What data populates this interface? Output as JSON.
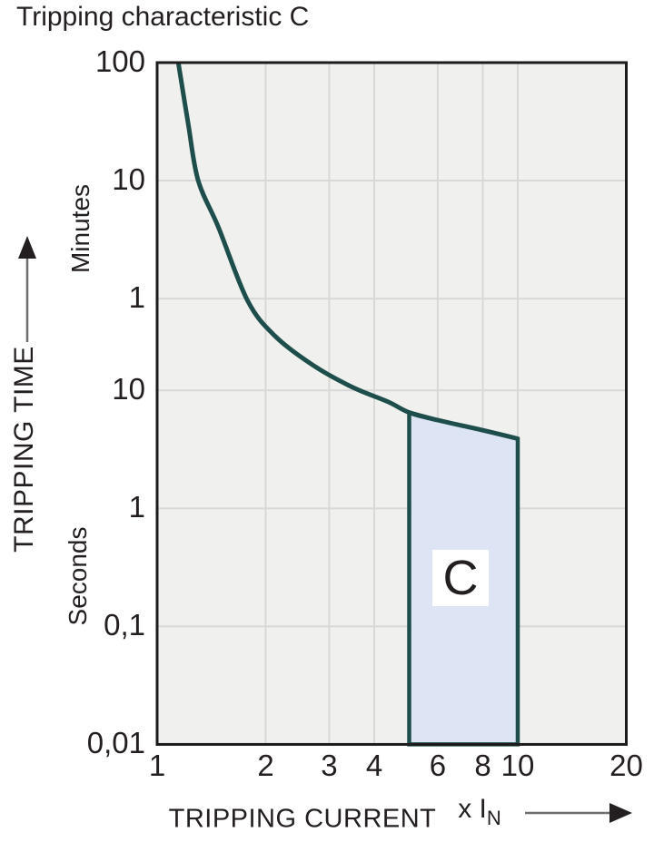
{
  "title": "Tripping characteristic C",
  "colors": {
    "curve": "#1d4e4b",
    "band_fill": "#dde4f3",
    "band_stroke": "#1d4e4b",
    "plot_bg": "#f0f0ee",
    "gridline": "#d8d8d8",
    "plot_border": "#1c1a1b",
    "text": "#231f20",
    "arrow_line": "#6f6f6f",
    "arrow_head": "#231f20"
  },
  "y_axis": {
    "title": "TRIPPING TIME",
    "unit_top": "Minutes",
    "unit_bottom": "Seconds",
    "ticks": [
      {
        "label": "100",
        "seconds": 6000
      },
      {
        "label": "10",
        "seconds": 600
      },
      {
        "label": "1",
        "seconds": 60
      },
      {
        "label": "10",
        "seconds": 10
      },
      {
        "label": "1",
        "seconds": 1
      },
      {
        "label": "0,1",
        "seconds": 0.1
      },
      {
        "label": "0,01",
        "seconds": 0.01
      }
    ]
  },
  "x_axis": {
    "title": "TRIPPING CURRENT",
    "multiplier_label": "x I",
    "multiplier_sub": "N",
    "ticks": [
      {
        "label": "1",
        "value": 1
      },
      {
        "label": "2",
        "value": 2
      },
      {
        "label": "3",
        "value": 3
      },
      {
        "label": "4",
        "value": 4
      },
      {
        "label": "6",
        "value": 6
      },
      {
        "label": "8",
        "value": 8
      },
      {
        "label": "10",
        "value": 10
      },
      {
        "label": "20",
        "value": 20
      }
    ]
  },
  "region": {
    "label": "C"
  },
  "chart_data": {
    "type": "line",
    "title": "Tripping characteristic C",
    "xlabel": "TRIPPING CURRENT (x IN)",
    "ylabel": "TRIPPING TIME",
    "x_scale": "log",
    "y_scale": "log",
    "xlim": [
      1,
      20
    ],
    "ylim_seconds": [
      0.01,
      6000
    ],
    "grid": true,
    "x_gridlines": [
      2,
      3,
      4,
      6,
      8,
      10
    ],
    "y_gridlines_seconds": [
      600,
      60,
      10,
      1,
      0.1
    ],
    "series": [
      {
        "name": "C tripping curve",
        "points_x_multiple_vs_seconds": [
          [
            1.145,
            6000
          ],
          [
            1.22,
            1800
          ],
          [
            1.3,
            600
          ],
          [
            1.48,
            240
          ],
          [
            1.78,
            58
          ],
          [
            2.12,
            29
          ],
          [
            2.71,
            16.3
          ],
          [
            3.47,
            10.7
          ],
          [
            4.37,
            8.0
          ],
          [
            5.0,
            6.5
          ],
          [
            6.0,
            5.6
          ],
          [
            8.0,
            4.6
          ],
          [
            10.0,
            3.9
          ]
        ]
      }
    ],
    "band": {
      "label": "C",
      "x_range": [
        5,
        10
      ],
      "t_top_at_x5_seconds": 6.5,
      "t_top_at_x10_seconds": 3.9,
      "t_bottom_seconds": 0.01
    }
  }
}
